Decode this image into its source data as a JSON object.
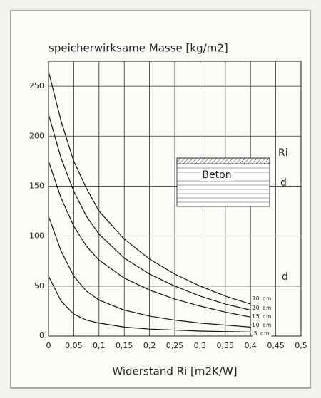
{
  "chart_data": {
    "type": "line",
    "title": "speicherwirksame Masse [kg/m2]",
    "x_label": "Widerstand Ri [m2K/W]",
    "x": [
      0,
      0.025,
      0.05,
      0.075,
      0.1,
      0.15,
      0.2,
      0.25,
      0.3,
      0.35,
      0.4
    ],
    "series": [
      {
        "name": "30 cm",
        "color": "#111111",
        "values": [
          265,
          215,
          175,
          148,
          125,
          97,
          77,
          62,
          50,
          40,
          32
        ]
      },
      {
        "name": "20 cm",
        "color": "#111111",
        "values": [
          222,
          178,
          145,
          120,
          102,
          78,
          62,
          50,
          40,
          32,
          26
        ]
      },
      {
        "name": "15 cm",
        "color": "#111111",
        "values": [
          175,
          138,
          110,
          90,
          76,
          58,
          46,
          37,
          30,
          24,
          19
        ]
      },
      {
        "name": "10 cm",
        "color": "#111111",
        "values": [
          120,
          85,
          60,
          45,
          36,
          26,
          20,
          16,
          13,
          11,
          9
        ]
      },
      {
        "name": "5 cm",
        "color": "#111111",
        "values": [
          60,
          35,
          22,
          16,
          13,
          9,
          7,
          6,
          5,
          4.5,
          4
        ]
      }
    ],
    "annotations": {
      "material": "Beton",
      "resistance": "Ri",
      "thickness": "d",
      "thickness_legend": "d"
    },
    "xlim": [
      0,
      0.5
    ],
    "xticks": [
      0,
      {
        "value": 0.05,
        "label": "0,05"
      },
      {
        "value": 0.1,
        "label": "0,1"
      },
      {
        "value": 0.15,
        "label": "0,15"
      },
      {
        "value": 0.2,
        "label": "0,2"
      },
      {
        "value": 0.25,
        "label": "0,25"
      },
      {
        "value": 0.3,
        "label": "0,3"
      },
      {
        "value": 0.35,
        "label": "0,35"
      },
      {
        "value": 0.4,
        "label": "0,4"
      },
      {
        "value": 0.45,
        "label": "0,45"
      },
      {
        "value": 0.5,
        "label": "0,5"
      }
    ],
    "ylim": [
      0,
      275
    ],
    "yticks": [
      0,
      50,
      100,
      150,
      200,
      250
    ],
    "grid": true
  }
}
